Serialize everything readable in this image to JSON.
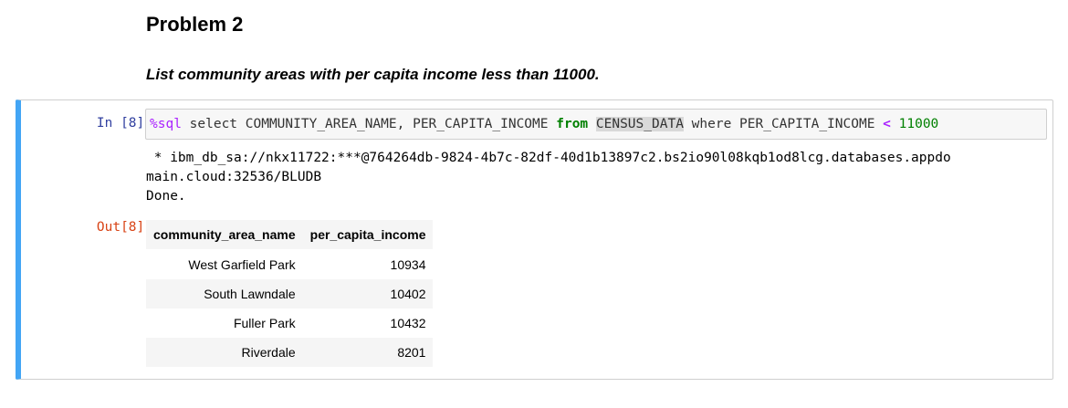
{
  "markdown": {
    "heading": "Problem 2",
    "description": "List community areas with per capita income less than 11000."
  },
  "cell": {
    "in_prompt": "In [8]:",
    "out_prompt": "Out[8]:",
    "code": {
      "magic": "%sql",
      "part1": " select COMMUNITY_AREA_NAME, PER_CAPITA_INCOME ",
      "kw_from": "from",
      "space1": " ",
      "table_name": "CENSUS_DATA",
      "part2": " where PER_CAPITA_INCOME ",
      "operator": "<",
      "space2": " ",
      "number": "11000"
    },
    "stream": {
      "line1": " * ibm_db_sa://nkx11722:***@764264db-9824-4b7c-82df-40d1b13897c2.bs2io90l08kqb1od8lcg.databases.appdo",
      "line2": "main.cloud:32536/BLUDB",
      "line3": "Done."
    },
    "table": {
      "columns": [
        "community_area_name",
        "per_capita_income"
      ],
      "rows": [
        [
          "West Garfield Park",
          "10934"
        ],
        [
          "South Lawndale",
          "10402"
        ],
        [
          "Fuller Park",
          "10432"
        ],
        [
          "Riverdale",
          "8201"
        ]
      ]
    }
  },
  "colors": {
    "cell_selected_border": "#42a5f5",
    "in_prompt": "#303f9f",
    "out_prompt": "#d84315",
    "keyword": "#008000",
    "magic": "#aa22ff"
  }
}
